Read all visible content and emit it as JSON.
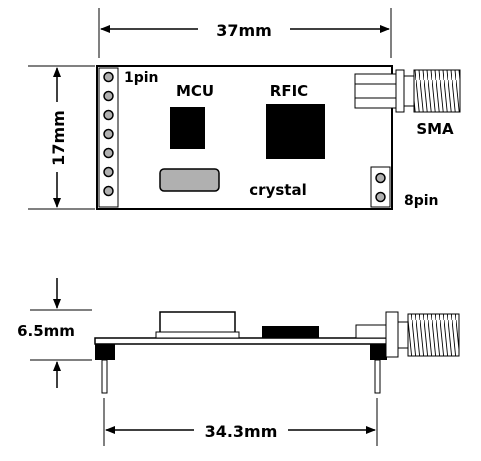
{
  "top_view": {
    "width_dim": "37mm",
    "height_dim": "17mm",
    "pin1_label": "1pin",
    "pin8_label": "8pin",
    "mcu_label": "MCU",
    "rfic_label": "RFIC",
    "crystal_label": "crystal",
    "sma_label": "SMA"
  },
  "side_view": {
    "height_dim": "6.5mm",
    "pin_pitch_dim": "34.3mm"
  },
  "colors": {
    "line": "#000000",
    "crystal_fill": "#b0b0b0",
    "background": "#ffffff"
  }
}
